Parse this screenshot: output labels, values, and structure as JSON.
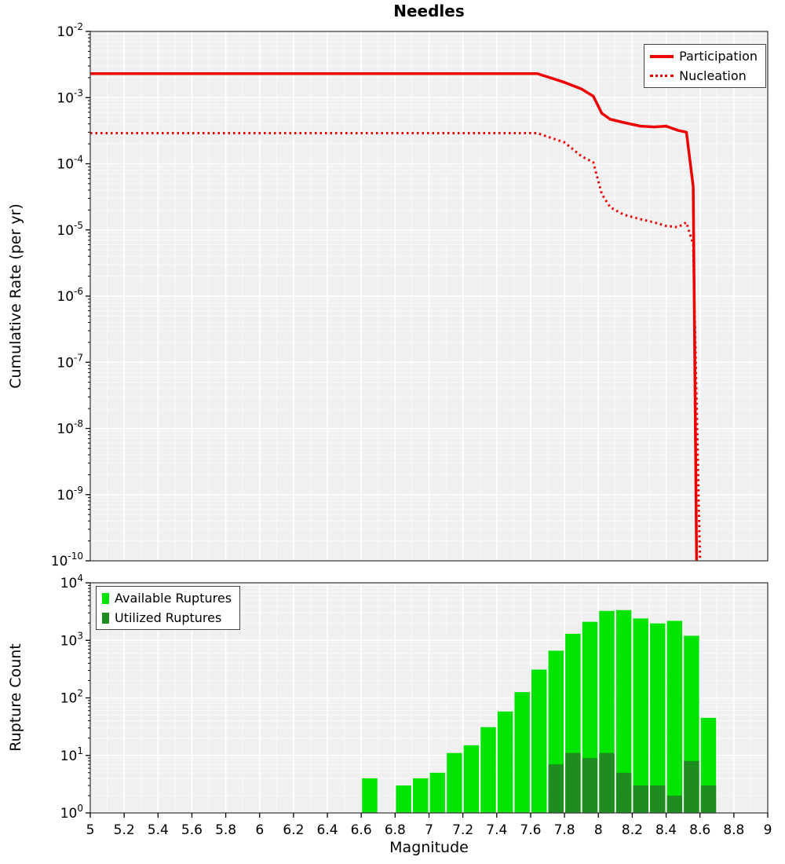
{
  "colors": {
    "line_red": "#ee0000",
    "available_green": "#00e400",
    "utilized_green": "#1e8c1e",
    "plot_background": "#f0f0f0",
    "grid_major": "#ffffff",
    "grid_minor": "#fafafa",
    "frame": "#404040",
    "tick": "#000000"
  },
  "chart_data": [
    {
      "type": "line",
      "title": "Needles",
      "ylabel": "Cumulative Rate (per yr)",
      "xlabel": "",
      "xlim": [
        5,
        9
      ],
      "xtick_step": 0.2,
      "ylim_log10": [
        -10,
        -2
      ],
      "yscale": "log",
      "grid": true,
      "legend_position": "top-right",
      "series": [
        {
          "name": "Participation",
          "style": "solid",
          "color": "#ee0000",
          "points": [
            [
              5.0,
              0.0023
            ],
            [
              7.64,
              0.0023
            ],
            [
              7.8,
              0.0017
            ],
            [
              7.9,
              0.00135
            ],
            [
              7.97,
              0.00105
            ],
            [
              8.02,
              0.00058
            ],
            [
              8.07,
              0.00047
            ],
            [
              8.15,
              0.00042
            ],
            [
              8.25,
              0.00037
            ],
            [
              8.33,
              0.00036
            ],
            [
              8.4,
              0.00037
            ],
            [
              8.47,
              0.00032
            ],
            [
              8.52,
              0.0003
            ],
            [
              8.56,
              4.5e-05
            ],
            [
              8.58,
              1e-10
            ]
          ]
        },
        {
          "name": "Nucleation",
          "style": "dotted",
          "color": "#ee0000",
          "points": [
            [
              5.0,
              0.00029
            ],
            [
              7.64,
              0.00029
            ],
            [
              7.8,
              0.00021
            ],
            [
              7.9,
              0.00013
            ],
            [
              7.97,
              0.000105
            ],
            [
              8.02,
              3.5e-05
            ],
            [
              8.07,
              2.2e-05
            ],
            [
              8.15,
              1.7e-05
            ],
            [
              8.25,
              1.45e-05
            ],
            [
              8.33,
              1.3e-05
            ],
            [
              8.4,
              1.15e-05
            ],
            [
              8.47,
              1.1e-05
            ],
            [
              8.52,
              1.3e-05
            ],
            [
              8.56,
              6e-06
            ],
            [
              8.6,
              1e-10
            ]
          ]
        }
      ]
    },
    {
      "type": "bar",
      "title": "",
      "ylabel": "Rupture Count",
      "xlabel": "Magnitude",
      "xlim": [
        5,
        9
      ],
      "xtick_step": 0.2,
      "ylim_log10": [
        0,
        4
      ],
      "yscale": "log",
      "grid": true,
      "legend_position": "top-left",
      "bar_width": 0.1,
      "categories": [
        6.65,
        6.75,
        6.85,
        6.95,
        7.05,
        7.15,
        7.25,
        7.35,
        7.45,
        7.55,
        7.65,
        7.75,
        7.85,
        7.95,
        8.05,
        8.15,
        8.25,
        8.35,
        8.45,
        8.55,
        8.65
      ],
      "series": [
        {
          "name": "Available Ruptures",
          "color": "#00e400",
          "values": [
            4,
            0,
            3,
            4,
            5,
            11,
            15,
            31,
            58,
            126,
            310,
            660,
            1300,
            2100,
            3250,
            3350,
            2400,
            1970,
            2180,
            1200,
            45
          ]
        },
        {
          "name": "Utilized Ruptures",
          "color": "#1e8c1e",
          "values": [
            0,
            0,
            0,
            0,
            0,
            0,
            0,
            0,
            0,
            0,
            0,
            7,
            11,
            9,
            11,
            5,
            3,
            3,
            2,
            8,
            3
          ]
        }
      ]
    }
  ]
}
